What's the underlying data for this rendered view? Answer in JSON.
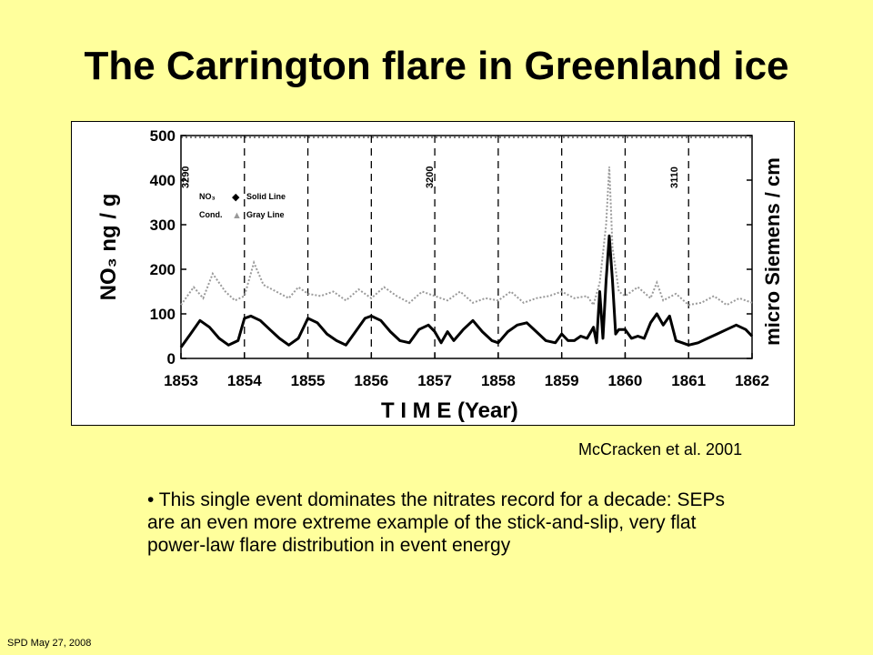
{
  "slide": {
    "title": "The Carrington flare in Greenland ice",
    "citation": "McCracken et al. 2001",
    "bullet": "• This single event dominates the nitrates record for a decade: SEPs are an even more extreme example of the stick-and-slip, very flat power-law flare distribution in event energy",
    "footer": "SPD May 27,  2008"
  },
  "chart_data": {
    "type": "line",
    "xlabel": "T I M E    (Year)",
    "ylabel": "NO₃ ng / g",
    "ylabel_right": "micro Siemens / cm",
    "xlim": [
      1853,
      1862
    ],
    "ylim": [
      0,
      500
    ],
    "x_ticks": [
      "1853",
      "1854",
      "1855",
      "1856",
      "1857",
      "1858",
      "1859",
      "1860",
      "1861",
      "1862"
    ],
    "y_ticks": [
      "0",
      "100",
      "200",
      "300",
      "400",
      "500"
    ],
    "depth_markers": [
      {
        "label": "3290",
        "x": 1853.05
      },
      {
        "label": "3200",
        "x": 1856.9
      },
      {
        "label": "3110",
        "x": 1860.75
      }
    ],
    "legend": [
      {
        "name": "NO₃",
        "marker": "◆",
        "desc": "Solid Line"
      },
      {
        "name": "Cond.",
        "marker": "▲",
        "desc": "Gray Line"
      }
    ],
    "series": [
      {
        "name": "NO₃",
        "style": "solid-black",
        "x": [
          1853.0,
          1853.15,
          1853.3,
          1853.45,
          1853.6,
          1853.75,
          1853.9,
          1854.0,
          1854.1,
          1854.25,
          1854.4,
          1854.55,
          1854.7,
          1854.85,
          1855.0,
          1855.15,
          1855.3,
          1855.45,
          1855.6,
          1855.75,
          1855.9,
          1856.0,
          1856.15,
          1856.3,
          1856.45,
          1856.6,
          1856.75,
          1856.9,
          1857.0,
          1857.1,
          1857.2,
          1857.3,
          1857.45,
          1857.6,
          1857.75,
          1857.9,
          1858.0,
          1858.15,
          1858.3,
          1858.45,
          1858.6,
          1858.75,
          1858.9,
          1859.0,
          1859.1,
          1859.2,
          1859.3,
          1859.4,
          1859.5,
          1859.55,
          1859.6,
          1859.65,
          1859.7,
          1859.75,
          1859.8,
          1859.85,
          1859.9,
          1860.0,
          1860.1,
          1860.2,
          1860.3,
          1860.4,
          1860.5,
          1860.6,
          1860.7,
          1860.8,
          1860.9,
          1861.0,
          1861.15,
          1861.3,
          1861.45,
          1861.6,
          1861.75,
          1861.9,
          1862.0
        ],
        "y": [
          25,
          55,
          85,
          70,
          45,
          30,
          40,
          90,
          95,
          85,
          65,
          45,
          30,
          45,
          90,
          80,
          55,
          40,
          30,
          60,
          90,
          95,
          85,
          60,
          40,
          35,
          65,
          75,
          60,
          35,
          60,
          40,
          65,
          85,
          60,
          40,
          35,
          60,
          75,
          80,
          60,
          40,
          35,
          55,
          40,
          40,
          50,
          45,
          70,
          35,
          150,
          45,
          175,
          275,
          175,
          55,
          65,
          65,
          45,
          50,
          45,
          80,
          100,
          75,
          95,
          40,
          35,
          30,
          35,
          45,
          55,
          65,
          75,
          65,
          50
        ]
      },
      {
        "name": "Cond.",
        "style": "gray",
        "x": [
          1853.0,
          1853.2,
          1853.35,
          1853.5,
          1853.7,
          1853.85,
          1854.0,
          1854.15,
          1854.3,
          1854.5,
          1854.7,
          1854.85,
          1855.0,
          1855.2,
          1855.4,
          1855.6,
          1855.8,
          1856.0,
          1856.2,
          1856.4,
          1856.6,
          1856.8,
          1857.0,
          1857.2,
          1857.4,
          1857.6,
          1857.8,
          1858.0,
          1858.2,
          1858.4,
          1858.6,
          1858.8,
          1859.0,
          1859.2,
          1859.4,
          1859.5,
          1859.6,
          1859.7,
          1859.75,
          1859.8,
          1859.9,
          1860.0,
          1860.2,
          1860.4,
          1860.5,
          1860.6,
          1860.8,
          1861.0,
          1861.2,
          1861.4,
          1861.6,
          1861.8,
          1862.0
        ],
        "y": [
          120,
          160,
          135,
          190,
          150,
          130,
          140,
          215,
          165,
          150,
          135,
          160,
          145,
          140,
          150,
          130,
          155,
          135,
          160,
          140,
          125,
          150,
          140,
          130,
          150,
          125,
          135,
          130,
          150,
          125,
          135,
          140,
          150,
          135,
          140,
          120,
          170,
          300,
          430,
          250,
          150,
          140,
          160,
          135,
          170,
          130,
          145,
          120,
          125,
          140,
          120,
          135,
          125
        ]
      }
    ]
  }
}
